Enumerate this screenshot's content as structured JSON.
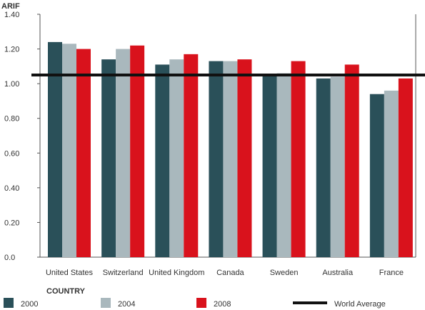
{
  "chart_data": {
    "type": "bar",
    "ylabel": "ARIF",
    "xlabel": "COUNTRY",
    "categories": [
      "United States",
      "Switzerland",
      "United Kingdom",
      "Canada",
      "Sweden",
      "Australia",
      "France"
    ],
    "series": [
      {
        "name": "2000",
        "color": "#2a5059",
        "values": [
          1.24,
          1.14,
          1.11,
          1.13,
          1.05,
          1.03,
          0.94
        ]
      },
      {
        "name": "2004",
        "color": "#a9b8bd",
        "values": [
          1.23,
          1.2,
          1.14,
          1.13,
          1.06,
          1.04,
          0.96
        ]
      },
      {
        "name": "2008",
        "color": "#d9121c",
        "values": [
          1.2,
          1.22,
          1.17,
          1.14,
          1.13,
          1.11,
          1.03
        ]
      }
    ],
    "reference_line": {
      "name": "World Average",
      "value": 1.05,
      "color": "#111111"
    },
    "yticks": [
      "0.0",
      "0.20",
      "0.40",
      "0.60",
      "0.80",
      "1.00",
      "1.20",
      "1.40"
    ],
    "ylim": [
      0,
      1.4
    ],
    "grid": false,
    "legend_position": "bottom"
  }
}
